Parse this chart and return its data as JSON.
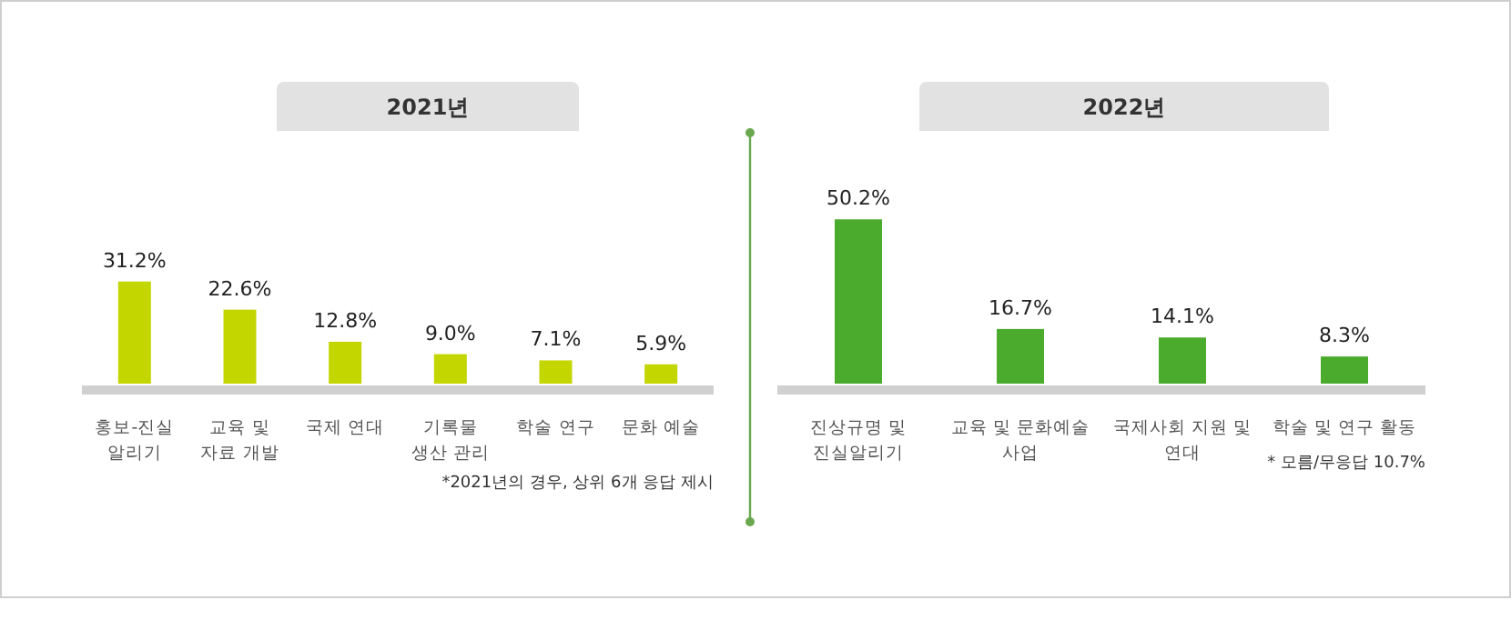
{
  "chart_data": [
    {
      "type": "bar",
      "title": "2021년",
      "categories": [
        "홍보-진실 알리기",
        "교육 및 자료 개발",
        "국제 연대",
        "기록물 생산 관리",
        "학술 연구",
        "문화 예술"
      ],
      "values": [
        31.2,
        22.6,
        12.8,
        9.0,
        7.1,
        5.9
      ],
      "value_labels": [
        "31.2%",
        "22.6%",
        "12.8%",
        "9.0%",
        "7.1%",
        "5.9%"
      ],
      "color": "#c4d600",
      "annotations": [
        "*2021년의 경우, 상위 6개 응답 제시"
      ]
    },
    {
      "type": "bar",
      "title": "2022년",
      "categories": [
        "진상규명 및 진실알리기",
        "교육 및 문화예술 사업",
        "국제사회 지원 및 연대",
        "학술 및 연구 활동"
      ],
      "values": [
        50.2,
        16.7,
        14.1,
        8.3
      ],
      "value_labels": [
        "50.2%",
        "16.7%",
        "14.1%",
        "8.3%"
      ],
      "color": "#4aab2c",
      "annotations": [
        "* 모름/무응답 10.7%"
      ]
    }
  ]
}
